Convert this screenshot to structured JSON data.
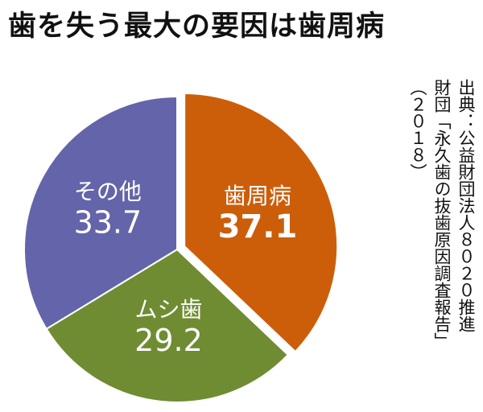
{
  "title": "歯を失う最大の要因は歯周病",
  "source_lines": [
    "出典：公益財団法人８０２０推進",
    "財団「永久歯の抜歯原因調査報告」",
    "（２０１８）"
  ],
  "chart_data": {
    "type": "pie",
    "title": "歯を失う最大の要因は歯周病",
    "slices": [
      {
        "label": "歯周病",
        "value": 37.1,
        "value_text": "37.1",
        "color": "#cc5e0a",
        "exploded": true
      },
      {
        "label": "ムシ歯",
        "value": 29.2,
        "value_text": "29.2",
        "color": "#6f8c33",
        "exploded": false
      },
      {
        "label": "その他",
        "value": 33.7,
        "value_text": "33.7",
        "color": "#6464aa",
        "exploded": false
      }
    ],
    "start": "12 o'clock",
    "direction": "clockwise",
    "legend": "none",
    "unit": "%"
  }
}
